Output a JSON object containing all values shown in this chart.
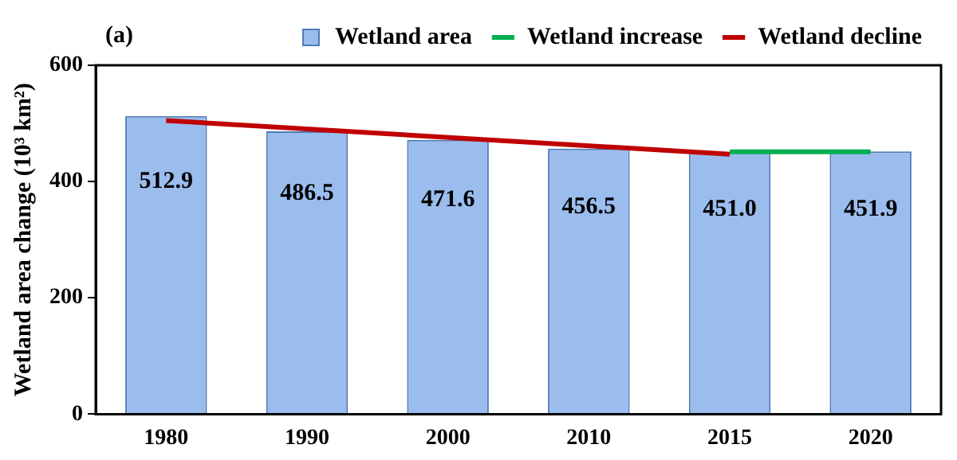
{
  "chart_data": {
    "type": "bar",
    "ylabel": "Wetland area change (10³ km²)",
    "categories": [
      "1980",
      "1990",
      "2000",
      "2010",
      "2015",
      "2020"
    ],
    "series": [
      {
        "name": "Wetland area",
        "color": "#9bbdee",
        "values": [
          512.9,
          486.5,
          471.6,
          456.5,
          451.0,
          451.9
        ],
        "value_labels": [
          "512.9",
          "486.5",
          "471.6",
          "456.5",
          "451.0",
          "451.9"
        ]
      },
      {
        "name": "Wetland increase",
        "type": "line",
        "color": "#00b050",
        "values": [
          null,
          null,
          null,
          null,
          451,
          451
        ]
      },
      {
        "name": "Wetland decline",
        "type": "line",
        "color": "#c00000",
        "values": [
          505,
          null,
          null,
          null,
          447,
          null
        ]
      }
    ],
    "ylim": [
      0,
      600
    ],
    "yticks": [
      0,
      200,
      400,
      600
    ],
    "legend": "top right",
    "marker": "none",
    "line_style": "solid",
    "annotations": [
      "(a)"
    ]
  }
}
